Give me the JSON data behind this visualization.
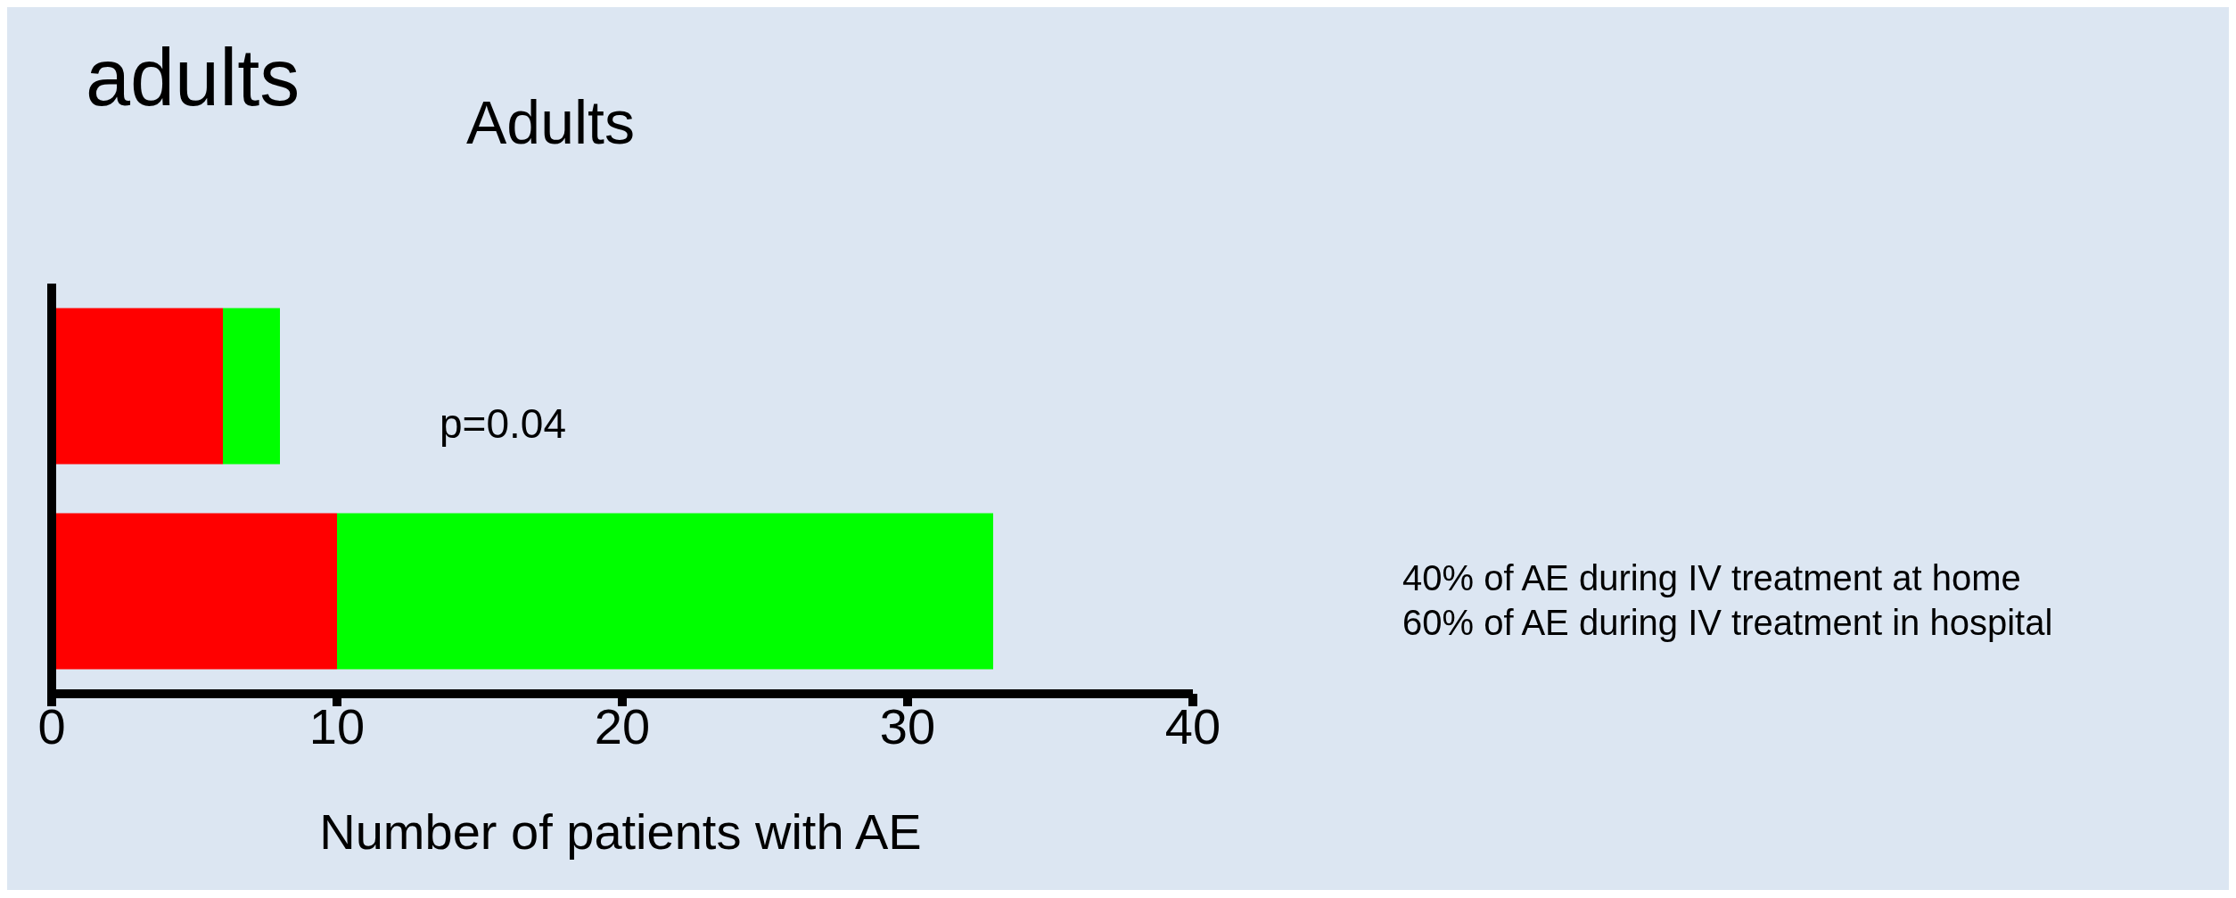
{
  "chart_data": {
    "type": "bar",
    "title": "adults",
    "subtitle": "Adults",
    "xlabel": "Number of patients with AE",
    "orientation": "horizontal",
    "stacked": true,
    "categories": [
      null,
      null
    ],
    "series": [
      {
        "color": "#ff0000",
        "values": [
          6,
          10
        ]
      },
      {
        "color": "#00ff00",
        "values": [
          2,
          23
        ]
      }
    ],
    "xlim": [
      0,
      40
    ],
    "xticks": [
      0,
      10,
      20,
      30,
      40
    ],
    "grid": false,
    "legend": false,
    "annotations": [
      "p=0.04",
      "40% of AE during IV treatment at home",
      "60% of AE during IV treatment in hospital"
    ]
  }
}
